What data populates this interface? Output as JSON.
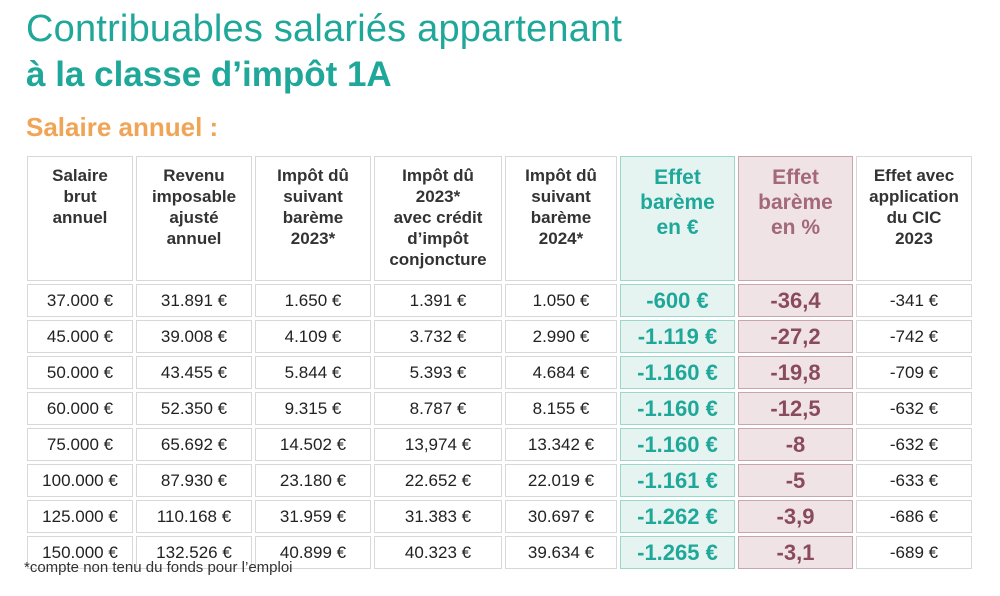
{
  "title_line1": "Contribuables salariés appartenant",
  "title_line2": "à la classe d’impôt 1A",
  "subtitle": "Salaire annuel :",
  "headers": [
    [
      "Salaire",
      "brut",
      "annuel"
    ],
    [
      "Revenu",
      "imposable",
      "ajusté",
      "annuel"
    ],
    [
      "Impôt dû",
      "suivant",
      "barème",
      "2023*"
    ],
    [
      "Impôt dû",
      "2023*",
      "avec crédit",
      "d’impôt",
      "conjoncture"
    ],
    [
      "Impôt dû",
      "suivant",
      "barème",
      "2024*"
    ],
    [
      "Effet",
      "barème",
      "en €"
    ],
    [
      "Effet",
      "barème",
      "en %"
    ],
    [
      "Effet avec",
      "application",
      "du CIC",
      "2023"
    ]
  ],
  "rows": [
    [
      "37.000 €",
      "31.891 €",
      "1.650 €",
      "1.391 €",
      "1.050 €",
      "-600 €",
      "-36,4",
      "-341 €"
    ],
    [
      "45.000 €",
      "39.008 €",
      "4.109 €",
      "3.732 €",
      "2.990 €",
      "-1.119 €",
      "-27,2",
      "-742 €"
    ],
    [
      "50.000 €",
      "43.455 €",
      "5.844 €",
      "5.393 €",
      "4.684 €",
      "-1.160 €",
      "-19,8",
      "-709 €"
    ],
    [
      "60.000 €",
      "52.350 €",
      "9.315 €",
      "8.787 €",
      "8.155 €",
      "-1.160 €",
      "-12,5",
      "-632 €"
    ],
    [
      "75.000 €",
      "65.692 €",
      "14.502 €",
      "13,974 €",
      "13.342 €",
      "-1.160 €",
      "-8",
      "-632 €"
    ],
    [
      "100.000 €",
      "87.930 €",
      "23.180 €",
      "22.652 €",
      "22.019 €",
      "-1.161 €",
      "-5",
      "-633 €"
    ],
    [
      "125.000 €",
      "110.168 €",
      "31.959 €",
      "31.383 €",
      "30.697 €",
      "-1.262 €",
      "-3,9",
      "-686 €"
    ],
    [
      "150.000 €",
      "132.526 €",
      "40.899 €",
      "40.323 €",
      "39.634 €",
      "-1.265 €",
      "-3,1",
      "-689 €"
    ]
  ],
  "footnote": "*compte non tenu du fonds pour l’emploi",
  "colors": {
    "accent_teal": "#1fa89a",
    "accent_orange": "#f0a455",
    "effet_eur_bg": "#e6f4f1",
    "effet_pct_bg": "#f0e3e6",
    "effet_pct_text": "#8a4a5e"
  }
}
